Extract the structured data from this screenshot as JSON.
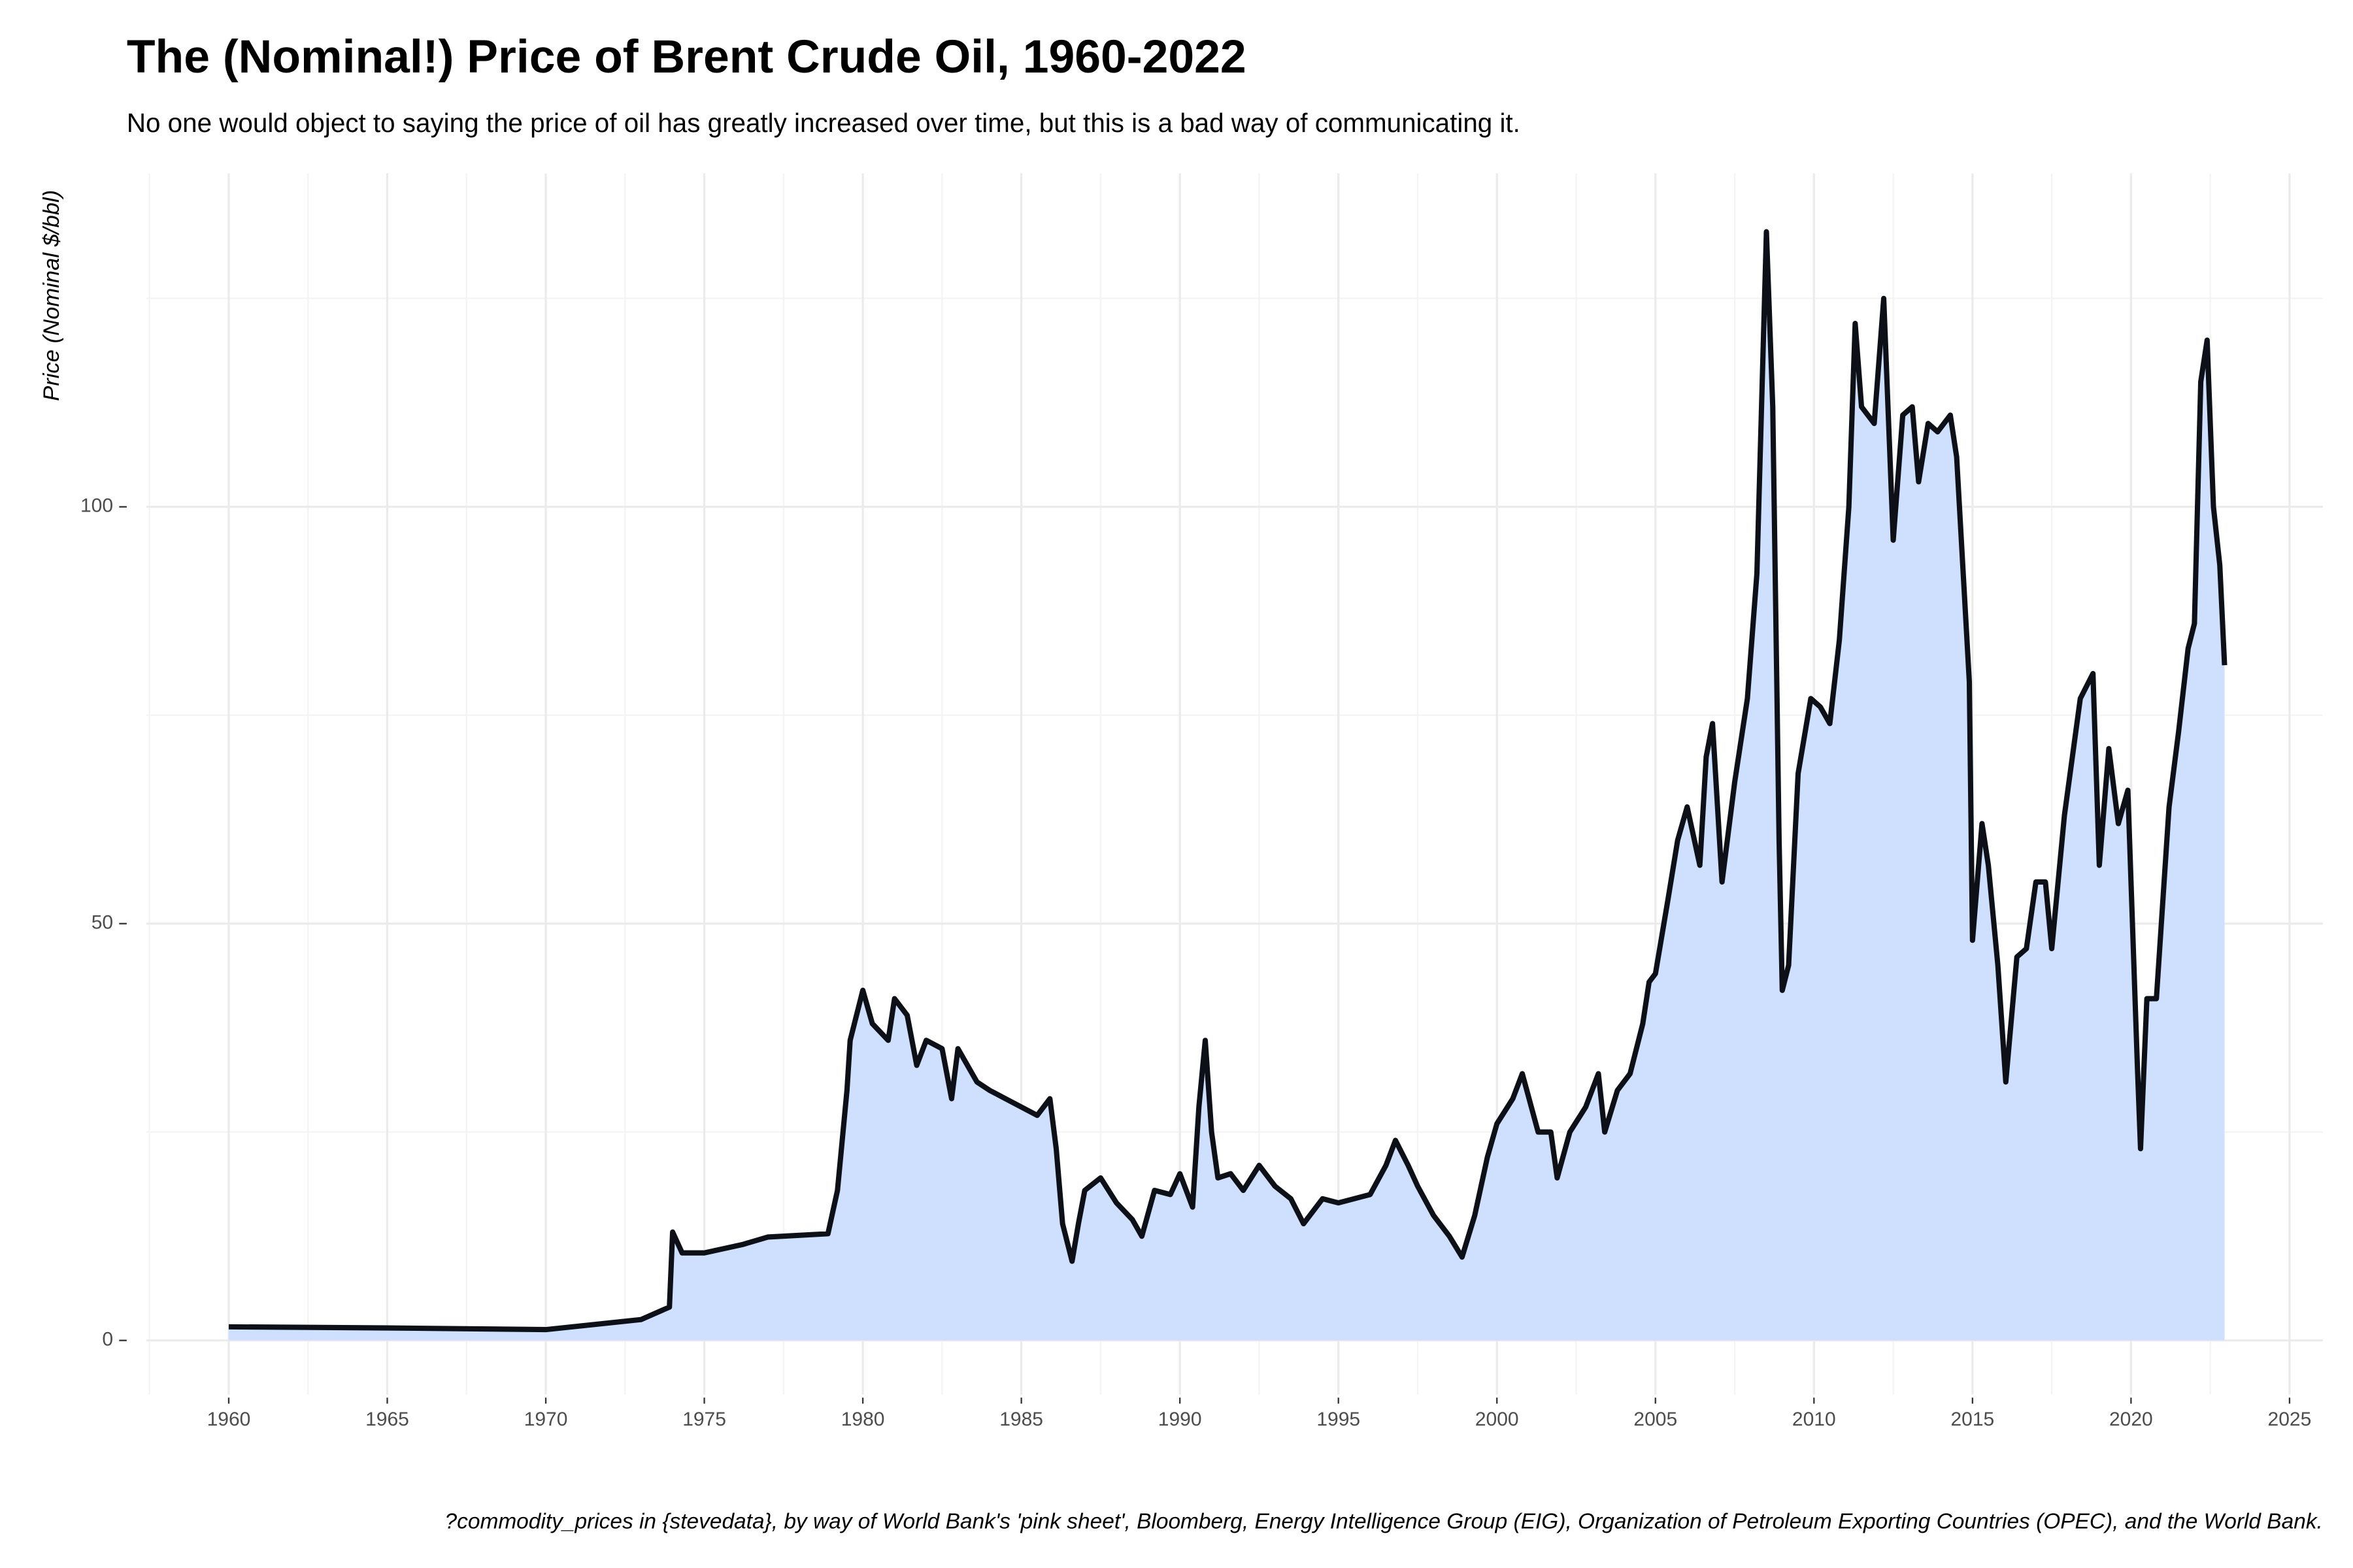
{
  "chart_data": {
    "type": "area",
    "title": "The (Nominal!) Price of Brent Crude Oil, 1960-2022",
    "subtitle": "No one would object to saying the price of oil has greatly increased over time, but this is a bad way of communicating it.",
    "y_label": "Price (Nominal $/bbl)",
    "caption": "?commodity_prices in {stevedata}, by way of World Bank's 'pink sheet', Bloomberg, Energy Intelligence Group (EIG), Organization of Petroleum Exporting Countries (OPEC), and the World Bank.",
    "line_color": "#0d1117",
    "fill_color": "#cfe0ff",
    "grid": true,
    "xlim": [
      1957.4,
      2026.05
    ],
    "ylim": [
      -6.5,
      140
    ],
    "xticks": [
      1960,
      1965,
      1970,
      1975,
      1980,
      1985,
      1990,
      1995,
      2000,
      2005,
      2010,
      2015,
      2020,
      2025
    ],
    "xminorticks": [
      1957.5,
      1962.5,
      1967.5,
      1972.5,
      1977.5,
      1982.5,
      1987.5,
      1992.5,
      1997.5,
      2002.5,
      2007.5,
      2012.5,
      2017.5,
      2022.5
    ],
    "yticks": [
      0,
      50,
      100
    ],
    "yminorticks": [
      25,
      75,
      125
    ],
    "x": [
      1960,
      1965,
      1970,
      1971,
      1973,
      1973.9,
      1974,
      1974.3,
      1975,
      1976.2,
      1977,
      1978.9,
      1979.2,
      1979.5,
      1979.6,
      1980,
      1980.3,
      1980.8,
      1981,
      1981.4,
      1981.7,
      1982,
      1982.5,
      1982.8,
      1983,
      1983.3,
      1983.6,
      1984,
      1984.5,
      1985,
      1985.5,
      1985.9,
      1986.1,
      1986.3,
      1986.6,
      1986.8,
      1987,
      1987.5,
      1988,
      1988.5,
      1988.8,
      1989.2,
      1989.7,
      1990,
      1990.4,
      1990.6,
      1990.8,
      1991,
      1991.2,
      1991.6,
      1992,
      1992.5,
      1993,
      1993.5,
      1993.9,
      1994.5,
      1995,
      1995.5,
      1996,
      1996.5,
      1996.8,
      1997.2,
      1997.5,
      1998,
      1998.5,
      1998.9,
      1999.3,
      1999.7,
      2000,
      2000.5,
      2000.8,
      2001.3,
      2001.7,
      2001.9,
      2002.3,
      2002.8,
      2003.2,
      2003.4,
      2003.8,
      2004.2,
      2004.6,
      2004.8,
      2005,
      2005.4,
      2005.7,
      2006,
      2006.4,
      2006.6,
      2006.8,
      2007.1,
      2007.5,
      2007.9,
      2008.2,
      2008.5,
      2008.7,
      2008.9,
      2009,
      2009.2,
      2009.5,
      2009.9,
      2010.2,
      2010.5,
      2010.8,
      2011.1,
      2011.3,
      2011.5,
      2011.9,
      2012.2,
      2012.5,
      2012.8,
      2013.1,
      2013.3,
      2013.6,
      2013.9,
      2014.3,
      2014.5,
      2014.9,
      2015,
      2015.3,
      2015.5,
      2015.8,
      2016.05,
      2016.4,
      2016.7,
      2017,
      2017.3,
      2017.5,
      2017.9,
      2018.4,
      2018.8,
      2019,
      2019.3,
      2019.6,
      2019.9,
      2020.2,
      2020.3,
      2020.5,
      2020.8,
      2021.2,
      2021.5,
      2021.8,
      2022,
      2022.2,
      2022.4,
      2022.6,
      2022.8,
      2022.95
    ],
    "values": [
      1.63,
      1.5,
      1.3,
      1.7,
      2.5,
      4,
      13,
      10.5,
      10.5,
      11.5,
      12.4,
      12.8,
      18,
      30,
      36,
      42,
      38,
      36,
      41,
      39,
      33,
      36,
      35,
      29,
      35,
      33,
      31,
      30,
      29,
      28,
      27,
      29,
      23,
      14,
      9.5,
      14,
      18,
      19.5,
      16.5,
      14.5,
      12.5,
      18,
      17.5,
      20,
      16,
      28,
      36,
      25,
      19.5,
      20,
      18,
      21,
      18.5,
      17,
      14,
      17,
      16.5,
      17,
      17.5,
      21,
      24,
      21,
      18.5,
      15,
      12.5,
      10,
      15,
      22,
      26,
      29,
      32,
      25,
      25,
      19.5,
      25,
      28,
      32,
      25,
      30,
      32,
      38,
      43,
      44,
      53,
      60,
      64,
      57,
      70,
      74,
      55,
      67,
      77,
      92,
      133,
      112,
      60,
      42,
      45,
      68,
      77,
      76,
      74,
      84,
      100,
      122,
      112,
      110,
      125,
      96,
      111,
      112,
      103,
      110,
      109,
      111,
      106,
      79,
      48,
      62,
      57,
      45,
      31,
      46,
      47,
      55,
      55,
      47,
      63,
      77,
      80,
      57,
      71,
      62,
      66,
      33,
      23,
      41,
      41,
      64,
      73,
      83,
      86,
      115,
      120,
      100,
      93,
      81
    ]
  }
}
